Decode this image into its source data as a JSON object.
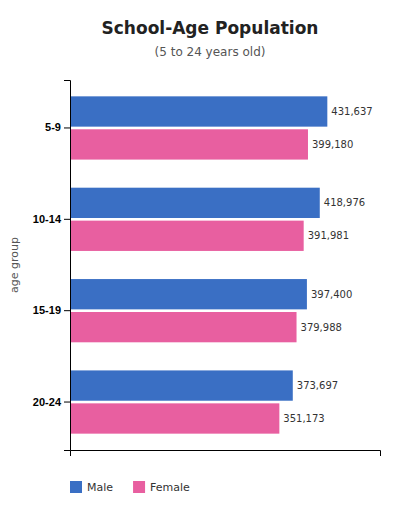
{
  "chart_data": {
    "type": "bar",
    "orientation": "horizontal",
    "title": "School-Age Population",
    "subtitle": "(5 to 24 years old)",
    "y_label": "age group",
    "categories": [
      "5-9",
      "10-14",
      "15-19",
      "20-24"
    ],
    "series": [
      {
        "name": "Male",
        "color": "#3a6fc4",
        "values": [
          431637,
          418976,
          397400,
          373697
        ],
        "value_labels": [
          "431,637",
          "418,976",
          "397,400",
          "373,697"
        ]
      },
      {
        "name": "Female",
        "color": "#e85fa0",
        "values": [
          399180,
          391981,
          379988,
          351173
        ],
        "value_labels": [
          "399,180",
          "391,981",
          "379,988",
          "351,173"
        ]
      }
    ],
    "xlim": [
      0,
      520000
    ],
    "xticks": [],
    "tick_labels": "y",
    "data_labels": true,
    "grid": false,
    "legend": "bottom-left"
  }
}
